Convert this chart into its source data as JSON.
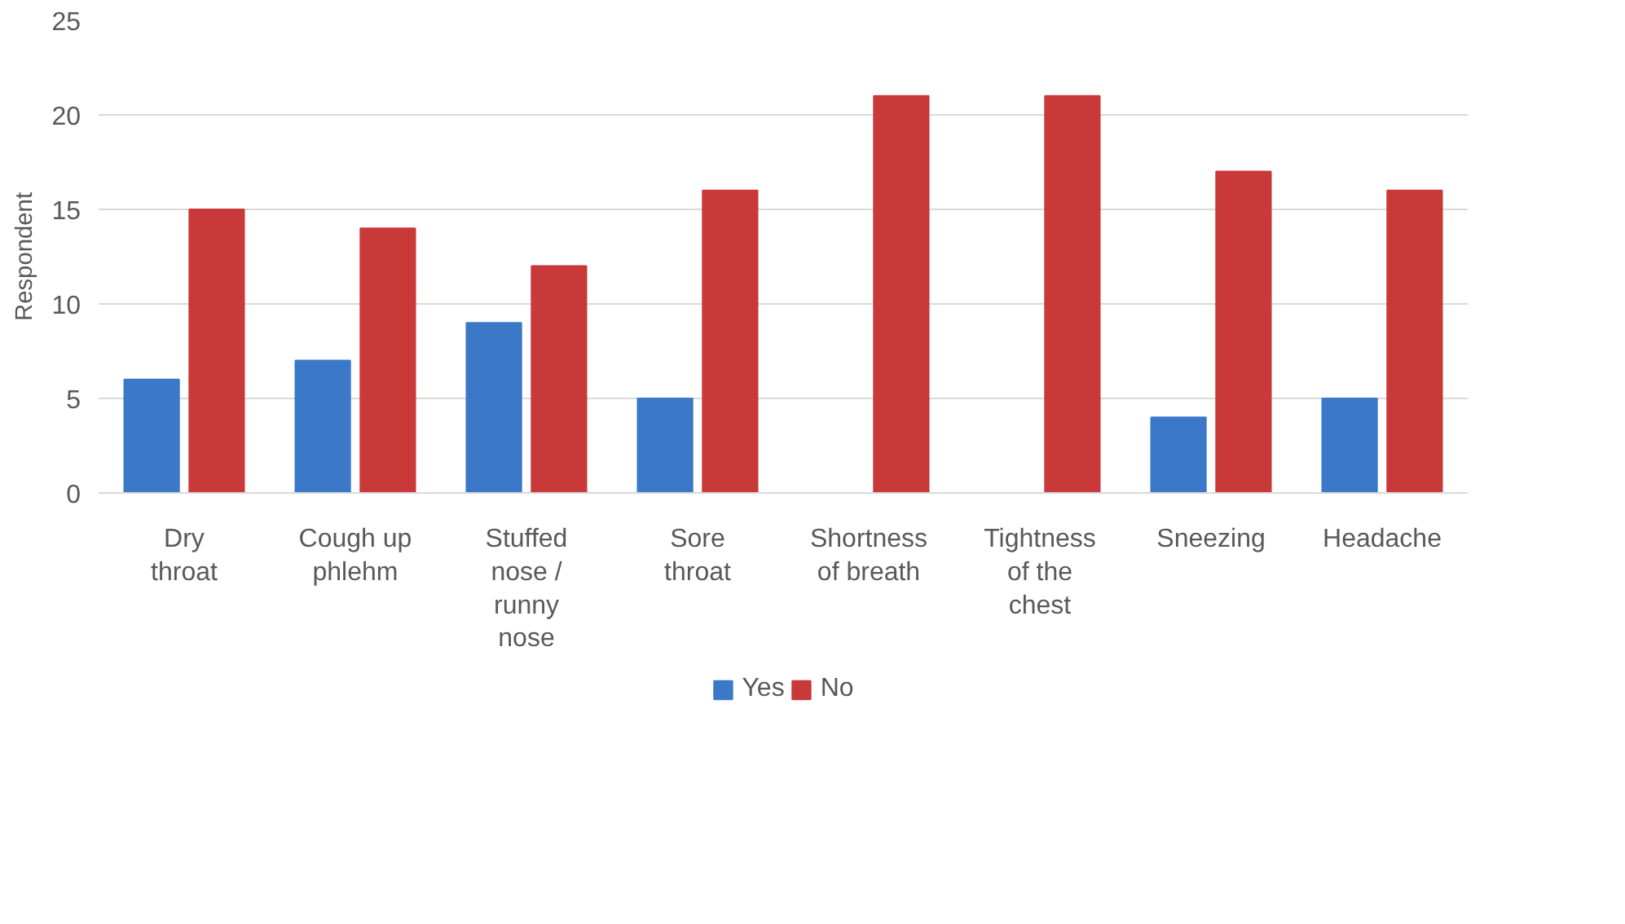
{
  "chart_data": {
    "type": "bar",
    "ylabel": "Respondent",
    "categories": [
      "Dry throat",
      "Cough up phlehm",
      "Stuffed nose / runny nose",
      "Sore throat",
      "Shortness of breath",
      "Tightness of the chest",
      "Sneezing",
      "Headache"
    ],
    "series": [
      {
        "name": "Yes",
        "color": "#3b78c8",
        "values": [
          6,
          7,
          9,
          5,
          0,
          0,
          4,
          5
        ]
      },
      {
        "name": "No",
        "color": "#c9393a",
        "values": [
          15,
          14,
          12,
          16,
          21,
          21,
          17,
          16
        ]
      }
    ],
    "ylim": [
      0,
      25
    ],
    "yticks": [
      0,
      5,
      10,
      15,
      20,
      25
    ],
    "grid": "y",
    "legend": "bottom"
  }
}
